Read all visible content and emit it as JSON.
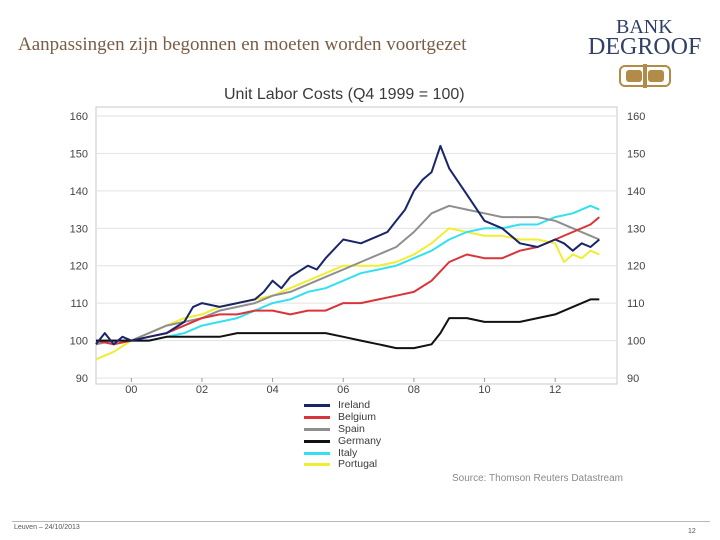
{
  "slide": {
    "title": "Aanpassingen zijn begonnen en moeten worden voortgezet",
    "footer_left": "Leuven – 24/10/2013",
    "page_number": "12"
  },
  "logo": {
    "line1": "BANK",
    "line2": "DEGROOF"
  },
  "colors": {
    "Ireland": "#1a2469",
    "Belgium": "#d9343a",
    "Spain": "#8e8e8e",
    "Germany": "#111111",
    "Italy": "#33e0f0",
    "Portugal": "#f0ee30",
    "gold": "#b38b48"
  },
  "chart_data": {
    "type": "line",
    "title": "Unit Labor Costs (Q4 1999 = 100)",
    "source": "Source: Thomson Reuters Datastream",
    "xlim": [
      1999,
      2013.75
    ],
    "ylim": [
      90,
      160
    ],
    "x_ticks": [
      {
        "label": "00",
        "value": 2000
      },
      {
        "label": "02",
        "value": 2002
      },
      {
        "label": "04",
        "value": 2004
      },
      {
        "label": "06",
        "value": 2006
      },
      {
        "label": "08",
        "value": 2008
      },
      {
        "label": "10",
        "value": 2010
      },
      {
        "label": "12",
        "value": 2012
      }
    ],
    "y_ticks": [
      "90",
      "100",
      "110",
      "120",
      "130",
      "140",
      "150",
      "160"
    ],
    "series": [
      {
        "name": "Ireland",
        "x": [
          1999,
          1999.25,
          1999.5,
          1999.75,
          2000,
          2000.5,
          2001,
          2001.5,
          2001.75,
          2002,
          2002.5,
          2003,
          2003.5,
          2003.75,
          2004,
          2004.25,
          2004.5,
          2005,
          2005.25,
          2005.5,
          2006,
          2006.5,
          2007,
          2007.25,
          2007.5,
          2007.75,
          2008,
          2008.25,
          2008.5,
          2008.75,
          2009,
          2009.5,
          2010,
          2010.5,
          2011,
          2011.5,
          2012,
          2012.25,
          2012.5,
          2012.75,
          2013,
          2013.25
        ],
        "values": [
          99,
          102,
          99,
          101,
          100,
          101,
          102,
          105,
          109,
          110,
          109,
          110,
          111,
          113,
          116,
          114,
          117,
          120,
          119,
          122,
          127,
          126,
          128,
          129,
          132,
          135,
          140,
          143,
          145,
          152,
          146,
          139,
          132,
          130,
          126,
          125,
          127,
          126,
          124,
          126,
          125,
          127
        ]
      },
      {
        "name": "Belgium",
        "x": [
          1999,
          1999.5,
          2000,
          2000.5,
          2001,
          2001.5,
          2002,
          2002.5,
          2003,
          2003.5,
          2004,
          2004.5,
          2005,
          2005.5,
          2006,
          2006.5,
          2007,
          2007.5,
          2008,
          2008.5,
          2009,
          2009.5,
          2010,
          2010.5,
          2011,
          2011.5,
          2012,
          2012.5,
          2013,
          2013.25
        ],
        "values": [
          100,
          99,
          100,
          101,
          102,
          104,
          106,
          107,
          107,
          108,
          108,
          107,
          108,
          108,
          110,
          110,
          111,
          112,
          113,
          116,
          121,
          123,
          122,
          122,
          124,
          125,
          127,
          129,
          131,
          133
        ]
      },
      {
        "name": "Spain",
        "x": [
          1999,
          1999.5,
          2000,
          2000.5,
          2001,
          2001.5,
          2002,
          2002.5,
          2003,
          2003.5,
          2004,
          2004.5,
          2005,
          2005.5,
          2006,
          2006.5,
          2007,
          2007.5,
          2008,
          2008.5,
          2009,
          2009.5,
          2010,
          2010.5,
          2011,
          2011.5,
          2012,
          2012.5,
          2013,
          2013.25
        ],
        "values": [
          99,
          100,
          100,
          102,
          104,
          105,
          106,
          108,
          109,
          110,
          112,
          113,
          115,
          117,
          119,
          121,
          123,
          125,
          129,
          134,
          136,
          135,
          134,
          133,
          133,
          133,
          132,
          130,
          128,
          127
        ]
      },
      {
        "name": "Germany",
        "x": [
          1999,
          1999.5,
          2000,
          2000.5,
          2001,
          2001.5,
          2002,
          2002.5,
          2003,
          2003.5,
          2004,
          2004.5,
          2005,
          2005.5,
          2006,
          2006.5,
          2007,
          2007.5,
          2008,
          2008.5,
          2008.75,
          2009,
          2009.5,
          2010,
          2010.5,
          2011,
          2011.5,
          2012,
          2012.5,
          2013,
          2013.25
        ],
        "values": [
          100,
          100,
          100,
          100,
          101,
          101,
          101,
          101,
          102,
          102,
          102,
          102,
          102,
          102,
          101,
          100,
          99,
          98,
          98,
          99,
          102,
          106,
          106,
          105,
          105,
          105,
          106,
          107,
          109,
          111,
          111
        ]
      },
      {
        "name": "Italy",
        "x": [
          1999,
          1999.5,
          2000,
          2000.5,
          2001,
          2001.5,
          2002,
          2002.5,
          2003,
          2003.5,
          2004,
          2004.5,
          2005,
          2005.5,
          2006,
          2006.5,
          2007,
          2007.5,
          2008,
          2008.5,
          2009,
          2009.5,
          2010,
          2010.5,
          2011,
          2011.5,
          2012,
          2012.5,
          2013,
          2013.25
        ],
        "values": [
          100,
          100,
          100,
          100,
          101,
          102,
          104,
          105,
          106,
          108,
          110,
          111,
          113,
          114,
          116,
          118,
          119,
          120,
          122,
          124,
          127,
          129,
          130,
          130,
          131,
          131,
          133,
          134,
          136,
          135
        ]
      },
      {
        "name": "Portugal",
        "x": [
          1999,
          1999.5,
          2000,
          2000.5,
          2001,
          2001.5,
          2002,
          2002.5,
          2003,
          2003.5,
          2004,
          2004.5,
          2005,
          2005.5,
          2006,
          2006.5,
          2007,
          2007.5,
          2008,
          2008.5,
          2009,
          2009.5,
          2010,
          2010.5,
          2011,
          2011.5,
          2012,
          2012.25,
          2012.5,
          2012.75,
          2013,
          2013.25
        ],
        "values": [
          95,
          97,
          100,
          102,
          104,
          106,
          107,
          109,
          110,
          111,
          112,
          114,
          116,
          118,
          120,
          120,
          120,
          121,
          123,
          126,
          130,
          129,
          128,
          128,
          127,
          127,
          126,
          121,
          123,
          122,
          124,
          123
        ]
      }
    ]
  }
}
